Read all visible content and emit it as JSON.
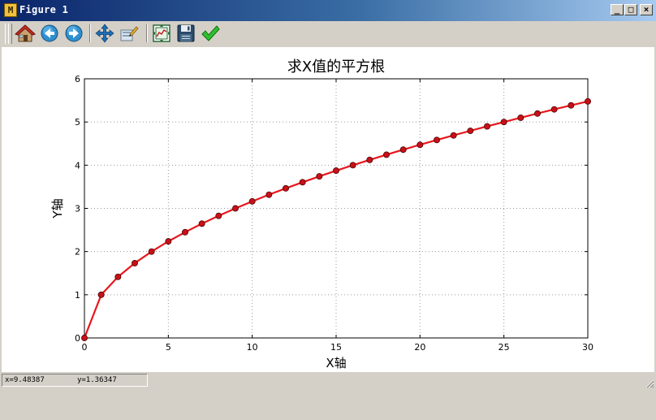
{
  "window": {
    "title": "Figure 1",
    "app_icon_glyph": "M",
    "buttons": {
      "minimize": "_",
      "maximize": "□",
      "close": "×"
    }
  },
  "toolbar": {
    "items": [
      {
        "name": "home",
        "icon": "home-icon"
      },
      {
        "name": "back",
        "icon": "back-arrow-icon"
      },
      {
        "name": "forward",
        "icon": "forward-arrow-icon"
      },
      {
        "name": "pan",
        "icon": "move-icon"
      },
      {
        "name": "zoom",
        "icon": "zoom-rect-icon"
      },
      {
        "name": "configure-subplots",
        "icon": "subplots-icon"
      },
      {
        "name": "save",
        "icon": "floppy-disk-icon"
      },
      {
        "name": "edit-axes",
        "icon": "checkmark-icon"
      }
    ]
  },
  "status": {
    "x": "x=9.48387",
    "y": "y=1.36347"
  },
  "colors": {
    "line": "#e8171d",
    "marker_fill": "#c81018",
    "grid": "#9a9a9a",
    "titlebar": "#0a246a"
  },
  "chart_data": {
    "type": "line",
    "title": "求X值的平方根",
    "xlabel": "X轴",
    "ylabel": "Y轴",
    "xlim": [
      0,
      30
    ],
    "ylim": [
      0,
      6
    ],
    "xticks": [
      0,
      5,
      10,
      15,
      20,
      25,
      30
    ],
    "yticks": [
      0,
      1,
      2,
      3,
      4,
      5,
      6
    ],
    "grid": true,
    "marker": "circle",
    "series": [
      {
        "x": [
          0,
          1,
          2,
          3,
          4,
          5,
          6,
          7,
          8,
          9,
          10,
          11,
          12,
          13,
          14,
          15,
          16,
          17,
          18,
          19,
          20,
          21,
          22,
          23,
          24,
          25,
          26,
          27,
          28,
          29,
          30
        ],
        "values": [
          0,
          1,
          1.414,
          1.732,
          2,
          2.236,
          2.449,
          2.646,
          2.828,
          3,
          3.162,
          3.317,
          3.464,
          3.606,
          3.742,
          3.873,
          4,
          4.123,
          4.243,
          4.359,
          4.472,
          4.583,
          4.69,
          4.796,
          4.899,
          5,
          5.099,
          5.196,
          5.292,
          5.385,
          5.477
        ]
      }
    ]
  }
}
